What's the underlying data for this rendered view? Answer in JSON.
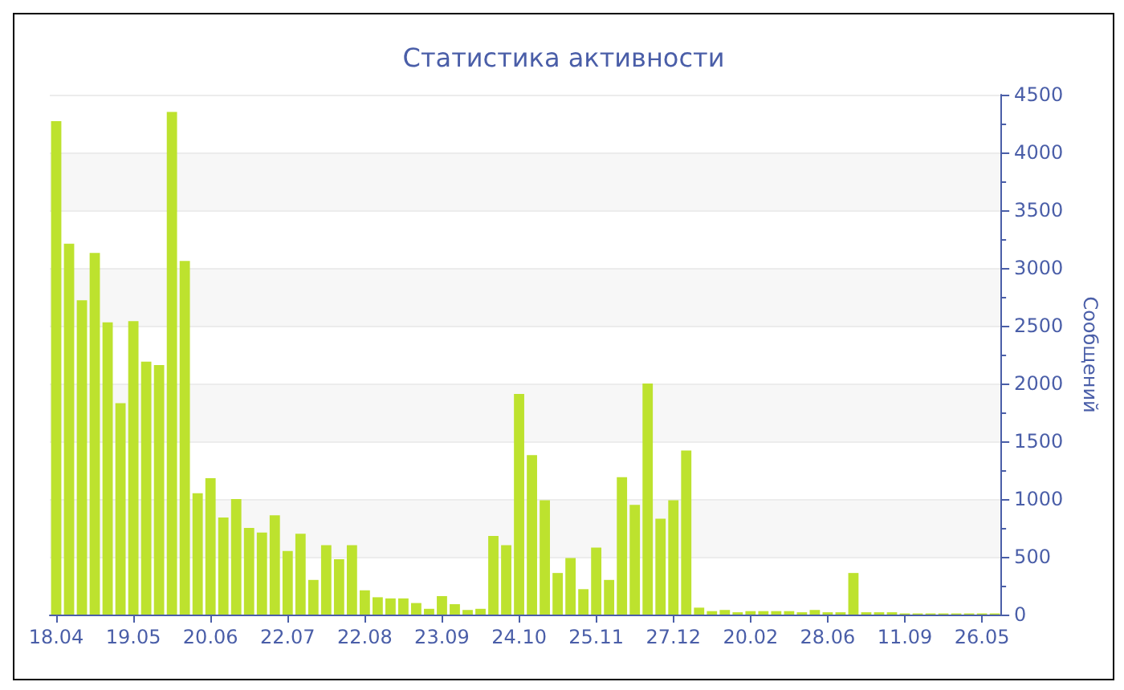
{
  "chart_data": {
    "type": "bar",
    "title": "Статистика активности",
    "ylabel": "Сообщений",
    "color": "#bde22e",
    "categories": [
      "18.04",
      null,
      null,
      null,
      null,
      null,
      "19.05",
      null,
      null,
      null,
      null,
      null,
      "20.06",
      null,
      null,
      null,
      null,
      null,
      "22.07",
      null,
      null,
      null,
      null,
      null,
      "22.08",
      null,
      null,
      null,
      null,
      null,
      "23.09",
      null,
      null,
      null,
      null,
      null,
      "24.10",
      null,
      null,
      null,
      null,
      null,
      "25.11",
      null,
      null,
      null,
      null,
      null,
      "27.12",
      null,
      null,
      null,
      null,
      null,
      "20.02",
      null,
      null,
      null,
      null,
      null,
      "28.06",
      null,
      null,
      null,
      null,
      null,
      "11.09",
      null,
      null,
      null,
      null,
      null,
      "26.05",
      null
    ],
    "values": [
      4270,
      3210,
      2720,
      3130,
      2530,
      1830,
      2540,
      2190,
      2160,
      4350,
      3060,
      1050,
      1180,
      840,
      1000,
      750,
      710,
      860,
      550,
      700,
      300,
      600,
      480,
      600,
      210,
      150,
      140,
      140,
      100,
      50,
      160,
      90,
      40,
      50,
      680,
      600,
      1910,
      1380,
      990,
      360,
      490,
      220,
      580,
      300,
      1190,
      950,
      2000,
      830,
      990,
      1420,
      60,
      30,
      40,
      20,
      30,
      30,
      30,
      30,
      20,
      40,
      20,
      20,
      360,
      20,
      20,
      20,
      10,
      10,
      10,
      10,
      10,
      10,
      10,
      10
    ],
    "ylim": [
      0,
      4500
    ],
    "yticks": [
      0,
      500,
      1000,
      1500,
      2000,
      2500,
      3000,
      3500,
      4000,
      4500
    ],
    "grid": "y"
  }
}
